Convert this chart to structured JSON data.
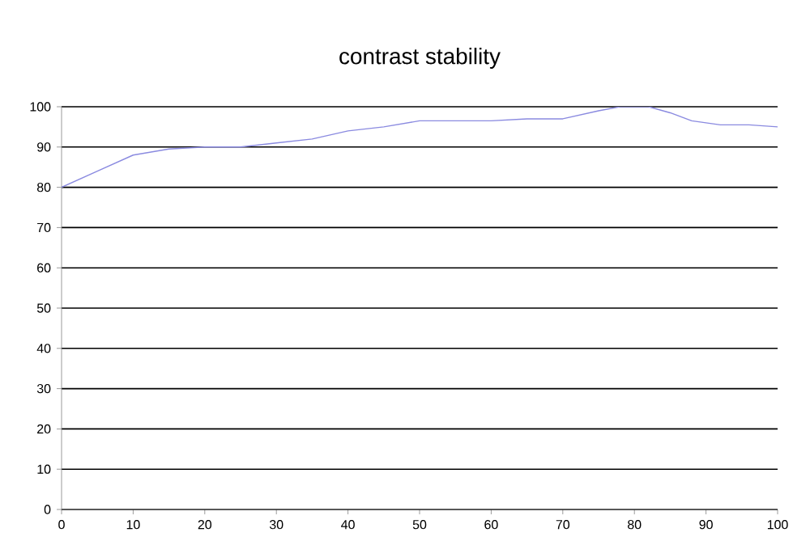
{
  "chart_data": {
    "type": "line",
    "title": "contrast stability",
    "x": [
      0,
      5,
      10,
      15,
      20,
      25,
      30,
      35,
      40,
      45,
      50,
      55,
      60,
      65,
      70,
      75,
      78,
      82,
      85,
      88,
      92,
      96,
      100
    ],
    "series": [
      {
        "color": "#8a8ae0",
        "values": [
          80,
          84,
          88,
          89.5,
          90,
          90,
          91,
          92,
          94,
          95,
          96.5,
          96.5,
          96.5,
          97,
          97,
          99,
          100,
          100,
          98.5,
          96.5,
          95.5,
          95.5,
          95
        ]
      }
    ],
    "xlim": [
      0,
      100
    ],
    "ylim": [
      0,
      100
    ],
    "xticks": [
      0,
      10,
      20,
      30,
      40,
      50,
      60,
      70,
      80,
      90,
      100
    ],
    "yticks": [
      0,
      10,
      20,
      30,
      40,
      50,
      60,
      70,
      80,
      90,
      100
    ],
    "grid": "y",
    "marker": "none",
    "line_style": "solid"
  }
}
